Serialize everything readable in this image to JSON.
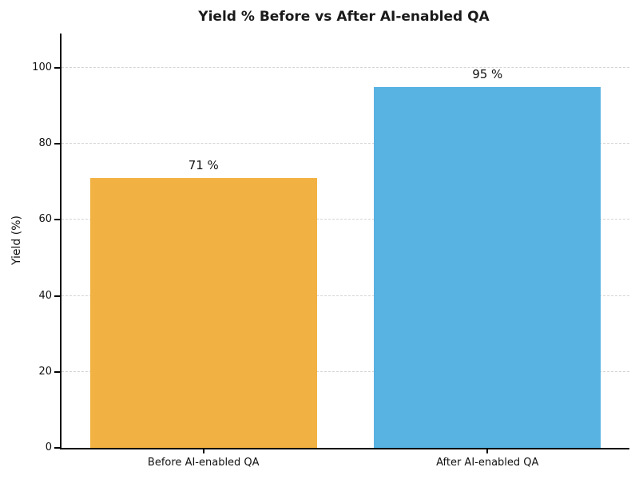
{
  "chart_data": {
    "type": "bar",
    "title": "Yield % Before vs After AI-enabled QA",
    "ylabel": "Yield (%)",
    "xlabel": "",
    "categories": [
      "Before AI-enabled QA",
      "After AI-enabled QA"
    ],
    "values": [
      71,
      95
    ],
    "value_labels": [
      "71 %",
      "95 %"
    ],
    "bar_colors": [
      "#F2B243",
      "#58B2E2"
    ],
    "ylim": [
      0,
      109
    ],
    "yticks": [
      0,
      20,
      40,
      60,
      80,
      100
    ],
    "grid": "horizontal-dashed",
    "gridline_color": "#d4d4d4",
    "legend": "none",
    "background_color": "#ffffff"
  }
}
